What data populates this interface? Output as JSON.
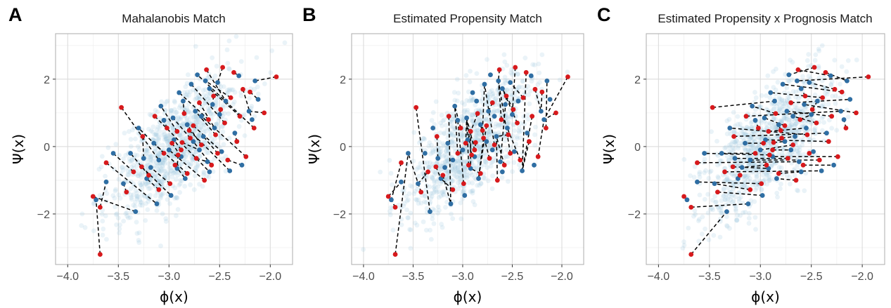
{
  "chart_data": [
    {
      "type": "scatter",
      "panel_label": "A",
      "title": "Mahalanobis Match",
      "xlabel": "ϕ(x)",
      "ylabel": "Ψ(x)",
      "xlim": [
        -4.12,
        -1.78
      ],
      "ylim": [
        -3.5,
        3.35
      ],
      "xticks": [
        -4.0,
        -3.5,
        -3.0,
        -2.5,
        -2.0
      ],
      "yticks": [
        -2,
        0,
        2
      ],
      "grid": true,
      "legend": "none",
      "seed": 101
    },
    {
      "type": "scatter",
      "panel_label": "B",
      "title": "Estimated Propensity Match",
      "xlabel": "ϕ(x)",
      "ylabel": "Ψ(x)",
      "xlim": [
        -4.12,
        -1.78
      ],
      "ylim": [
        -3.5,
        3.35
      ],
      "xticks": [
        -4.0,
        -3.5,
        -3.0,
        -2.5,
        -2.0
      ],
      "yticks": [
        -2,
        0,
        2
      ],
      "grid": true,
      "legend": "none",
      "seed": 202
    },
    {
      "type": "scatter",
      "panel_label": "C",
      "title": "Estimated Propensity x Prognosis Match",
      "xlabel": "ϕ(x)",
      "ylabel": "Ψ(x)",
      "xlim": [
        -4.12,
        -1.78
      ],
      "ylim": [
        -3.5,
        3.35
      ],
      "xticks": [
        -4.0,
        -3.5,
        -3.0,
        -2.5,
        -2.0
      ],
      "yticks": [
        -2,
        0,
        2
      ],
      "grid": true,
      "legend": "none",
      "seed": 303
    }
  ],
  "treated_points": [
    [
      -3.68,
      -3.2
    ],
    [
      -3.75,
      -1.48
    ],
    [
      -3.68,
      -1.8
    ],
    [
      -3.62,
      -0.48
    ],
    [
      -3.47,
      1.16
    ],
    [
      -3.42,
      -1.35
    ],
    [
      -3.35,
      -0.75
    ],
    [
      -3.27,
      -0.6
    ],
    [
      -3.26,
      0.3
    ],
    [
      -3.2,
      -0.85
    ],
    [
      -3.14,
      0.9
    ],
    [
      -3.1,
      -1.28
    ],
    [
      -3.05,
      -0.2
    ],
    [
      -3.02,
      0.55
    ],
    [
      -2.99,
      -1.1
    ],
    [
      -2.97,
      0.1
    ],
    [
      -2.94,
      -0.55
    ],
    [
      -2.92,
      0.45
    ],
    [
      -2.88,
      -0.1
    ],
    [
      -2.85,
      0.98
    ],
    [
      -2.82,
      -0.8
    ],
    [
      -2.79,
      0.25
    ],
    [
      -2.76,
      0.62
    ],
    [
      -2.73,
      -0.35
    ],
    [
      -2.7,
      1.3
    ],
    [
      -2.68,
      0.05
    ],
    [
      -2.65,
      -1.0
    ],
    [
      -2.63,
      2.28
    ],
    [
      -2.61,
      0.8
    ],
    [
      -2.58,
      -0.55
    ],
    [
      -2.56,
      1.5
    ],
    [
      -2.54,
      0.35
    ],
    [
      -2.52,
      -0.2
    ],
    [
      -2.49,
      1.1
    ],
    [
      -2.47,
      2.35
    ],
    [
      -2.45,
      0.7
    ],
    [
      -2.42,
      -0.4
    ],
    [
      -2.39,
      1.45
    ],
    [
      -2.36,
      2.2
    ],
    [
      -2.33,
      0.15
    ],
    [
      -2.3,
      0.9
    ],
    [
      -2.27,
      1.7
    ],
    [
      -2.24,
      -0.3
    ],
    [
      -2.2,
      1.62
    ],
    [
      -2.16,
      0.55
    ],
    [
      -2.06,
      1.0
    ],
    [
      -1.94,
      2.07
    ],
    [
      -2.87,
      0.12
    ],
    [
      -2.91,
      -0.25
    ],
    [
      -2.8,
      0.48
    ]
  ],
  "control_points": [
    [
      -3.72,
      -1.58
    ],
    [
      -3.33,
      -1.93
    ],
    [
      -3.12,
      -1.7
    ],
    [
      -3.18,
      -0.62
    ],
    [
      -3.45,
      -1.1
    ],
    [
      -3.55,
      -0.2
    ],
    [
      -3.3,
      0.55
    ],
    [
      -3.08,
      1.2
    ],
    [
      -2.98,
      -1.45
    ],
    [
      -2.9,
      1.6
    ],
    [
      -2.84,
      -0.95
    ],
    [
      -2.78,
      1.85
    ],
    [
      -2.72,
      2.13
    ],
    [
      -2.64,
      1.95
    ],
    [
      -2.6,
      -0.75
    ],
    [
      -2.57,
      1.25
    ],
    [
      -2.5,
      0.95
    ],
    [
      -2.44,
      1.35
    ],
    [
      -2.4,
      -0.72
    ],
    [
      -2.35,
      0.4
    ],
    [
      -2.31,
      2.1
    ],
    [
      -2.28,
      -0.55
    ],
    [
      -2.21,
      1.05
    ],
    [
      -2.18,
      0.8
    ],
    [
      -2.15,
      1.95
    ],
    [
      -2.12,
      1.4
    ],
    [
      -3.62,
      -1.05
    ],
    [
      -3.38,
      -0.2
    ],
    [
      -3.22,
      -0.95
    ],
    [
      -3.05,
      0.78
    ],
    [
      -2.95,
      0.2
    ],
    [
      -2.88,
      -0.3
    ],
    [
      -2.82,
      0.65
    ],
    [
      -2.74,
      1.05
    ],
    [
      -2.7,
      -0.1
    ],
    [
      -2.66,
      0.3
    ],
    [
      -2.62,
      -0.45
    ],
    [
      -2.55,
      0.55
    ],
    [
      -2.48,
      -0.15
    ],
    [
      -2.92,
      -0.65
    ],
    [
      -3.0,
      -0.1
    ],
    [
      -3.15,
      0.1
    ],
    [
      -2.6,
      1.72
    ],
    [
      -2.52,
      1.9
    ],
    [
      -2.86,
      1.35
    ],
    [
      -3.25,
      -0.35
    ],
    [
      -2.96,
      0.85
    ],
    [
      -2.76,
      0.15
    ],
    [
      -2.68,
      0.9
    ],
    [
      -3.1,
      -0.4
    ]
  ]
}
